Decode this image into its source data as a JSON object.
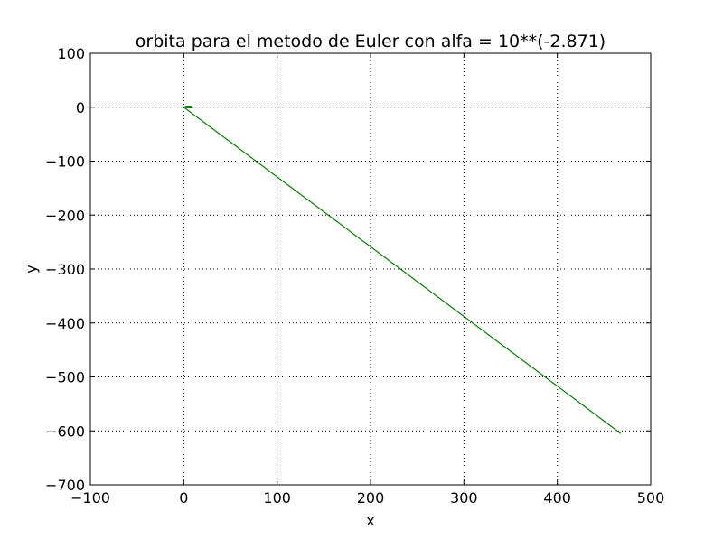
{
  "chart_data": {
    "type": "line",
    "title": "orbita para el metodo de Euler con alfa = 10**(-2.871)",
    "xlabel": "x",
    "ylabel": "y",
    "xlim": [
      -100,
      500
    ],
    "ylim": [
      -700,
      100
    ],
    "xticks": [
      -100,
      0,
      100,
      200,
      300,
      400,
      500
    ],
    "yticks": [
      100,
      0,
      -100,
      -200,
      -300,
      -400,
      -500,
      -600,
      -700
    ],
    "xtick_labels": [
      "−100",
      "0",
      "100",
      "200",
      "300",
      "400",
      "500"
    ],
    "ytick_labels": [
      "100",
      "0",
      "−100",
      "−200",
      "−300",
      "−400",
      "−500",
      "−600",
      "−700"
    ],
    "grid": true,
    "legend": false,
    "series": [
      {
        "color": "#008000",
        "x": [
          0,
          2,
          5,
          8,
          10,
          8,
          5,
          2,
          0,
          0,
          468
        ],
        "y": [
          0,
          1.5,
          2,
          1.5,
          0,
          -1,
          -1,
          -0.5,
          0,
          0,
          -605
        ]
      }
    ]
  }
}
